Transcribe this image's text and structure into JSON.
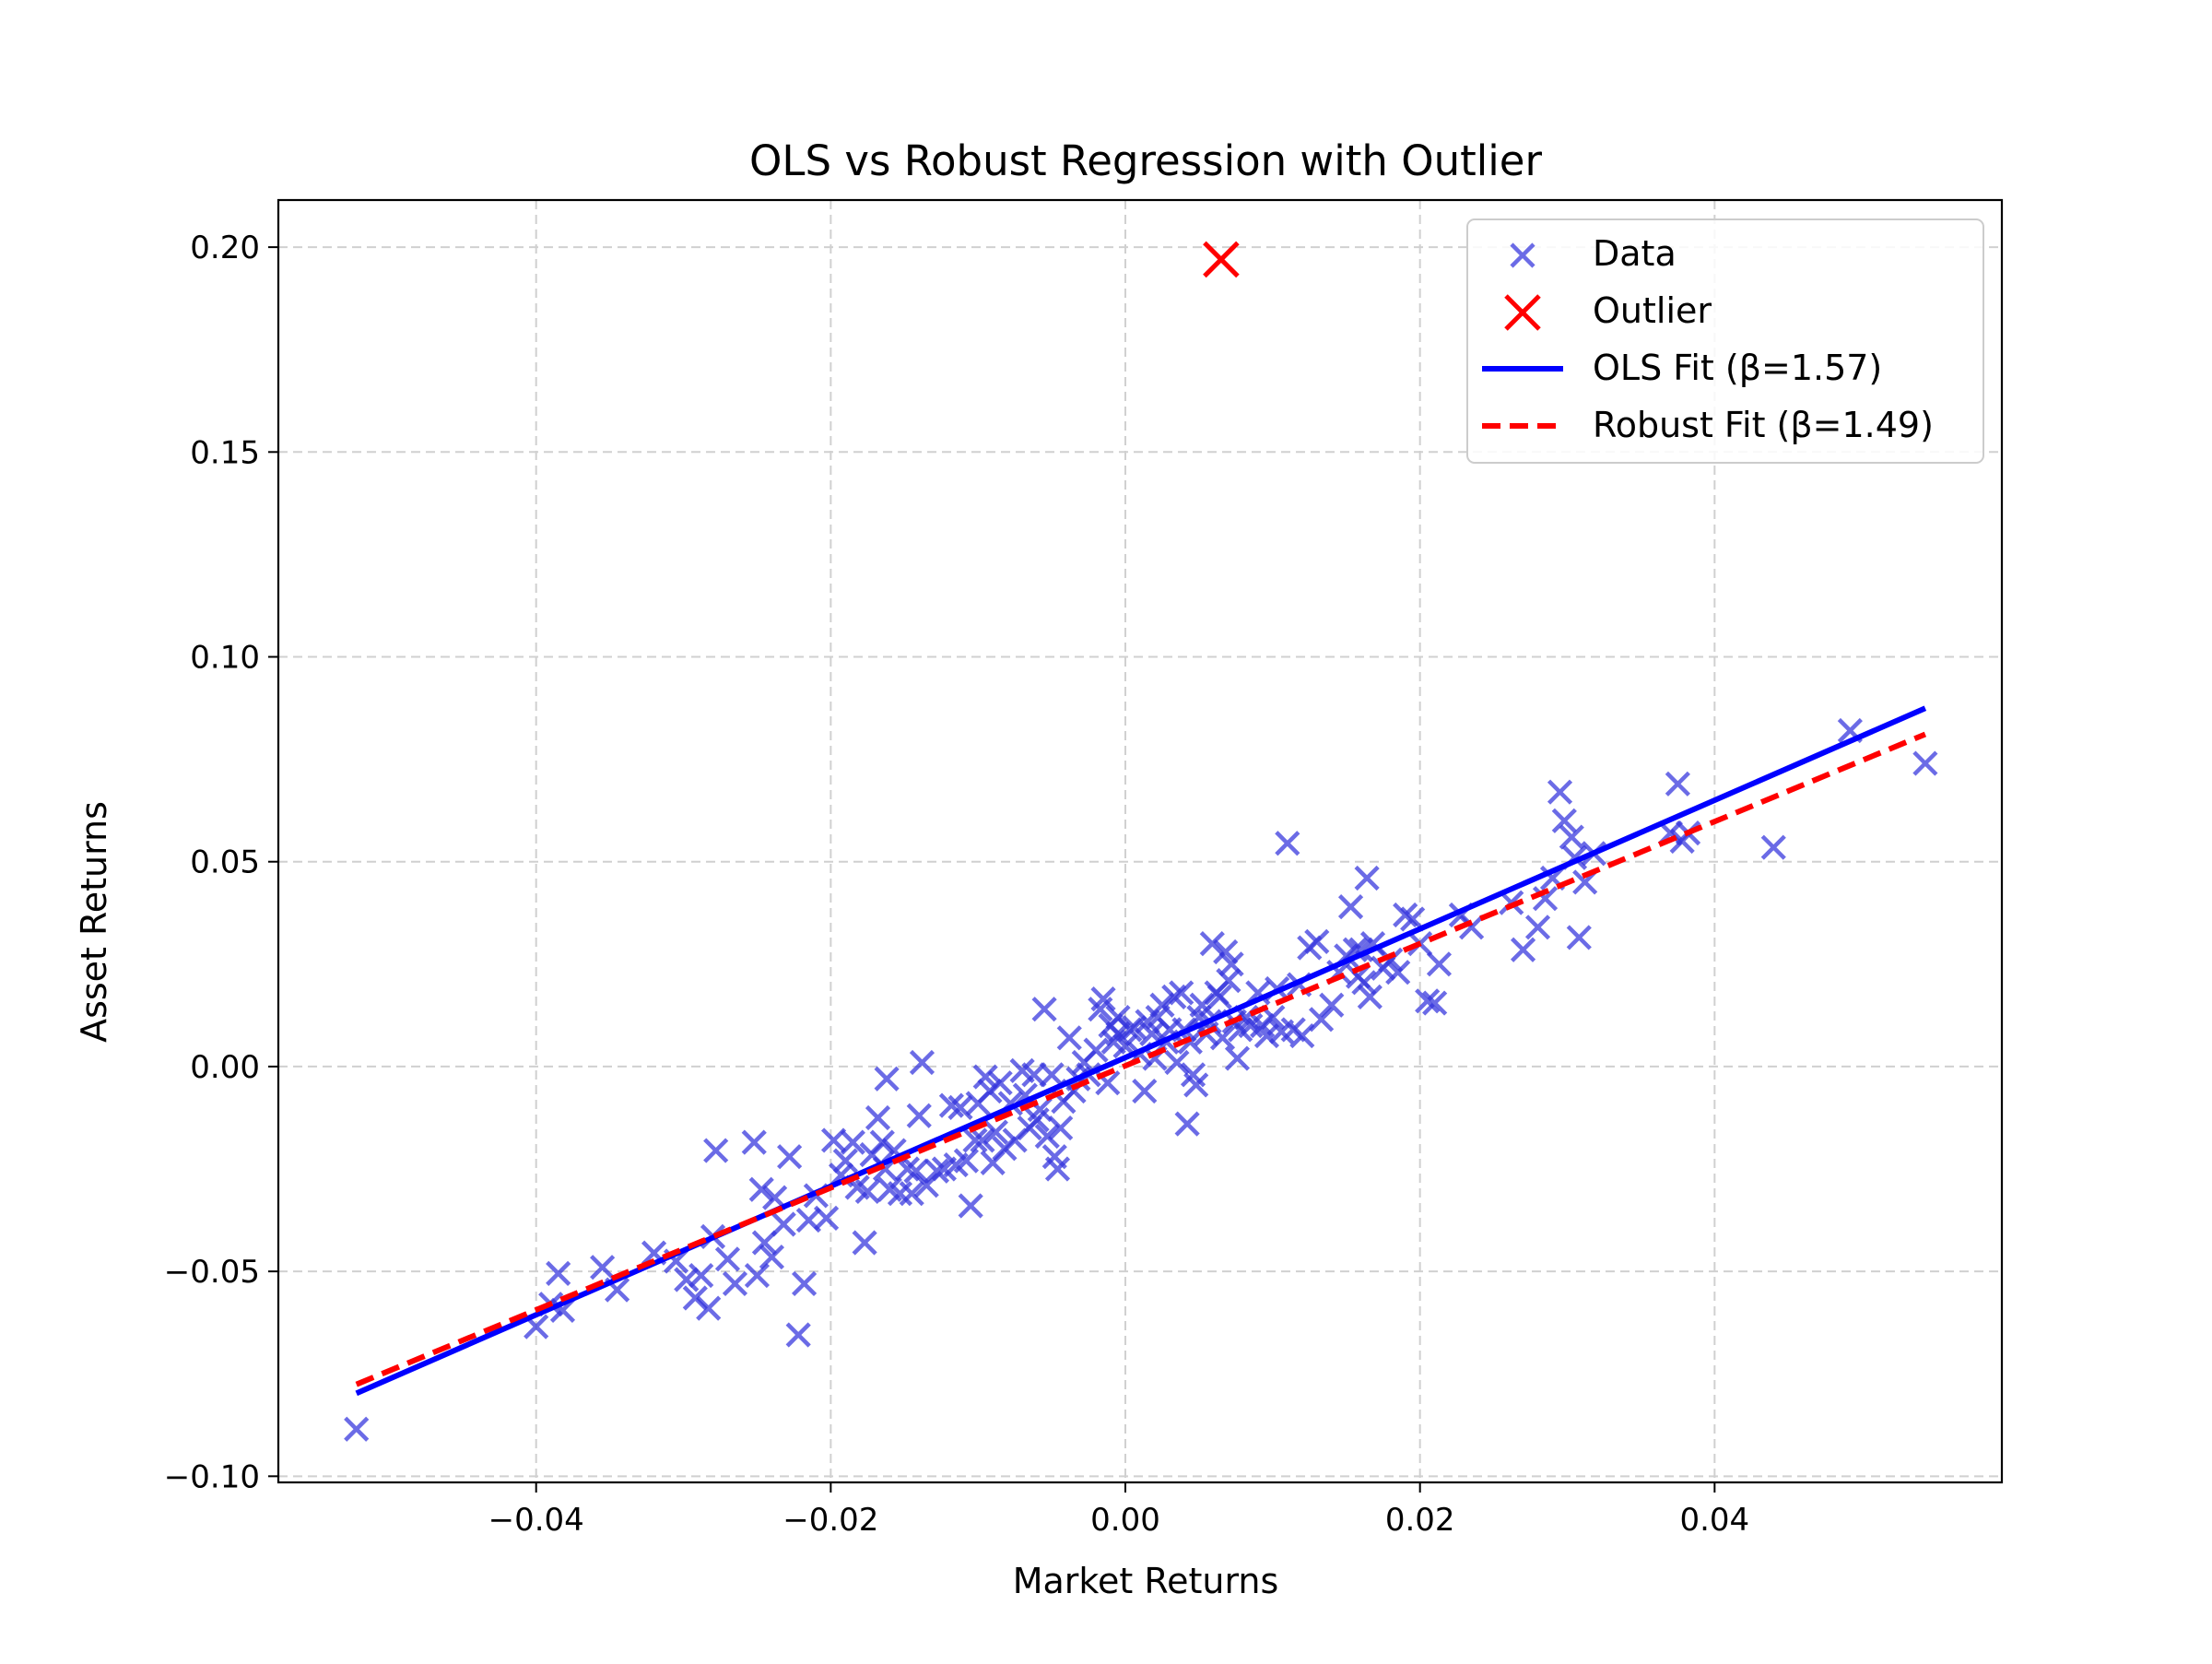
{
  "chart_data": {
    "type": "scatter",
    "title": "OLS vs Robust Regression with Outlier",
    "xlabel": "Market Returns",
    "ylabel": "Asset Returns",
    "xlim": [
      -0.0575,
      0.0595
    ],
    "ylim": [
      -0.1015,
      0.2115
    ],
    "x_ticks": [
      -0.04,
      -0.02,
      0.0,
      0.02,
      0.04
    ],
    "x_tick_labels": [
      "−0.04",
      "−0.02",
      "0.00",
      "0.02",
      "0.04"
    ],
    "y_ticks": [
      -0.1,
      -0.05,
      0.0,
      0.05,
      0.1,
      0.15,
      0.2
    ],
    "y_tick_labels": [
      "−0.10",
      "−0.05",
      "0.00",
      "0.05",
      "0.10",
      "0.15",
      "0.20"
    ],
    "grid": true,
    "legend_position": "top-right",
    "colors": {
      "data": "#3333dd",
      "outlier": "#ff0000",
      "ols": "#0000ff",
      "robust": "#ff0000"
    },
    "series": [
      {
        "name": "Data",
        "kind": "scatter",
        "marker": "x",
        "points": [
          [
            -0.0522,
            -0.0885
          ],
          [
            -0.04,
            -0.0635
          ],
          [
            -0.039,
            -0.058
          ],
          [
            -0.0385,
            -0.0505
          ],
          [
            -0.0382,
            -0.0595
          ],
          [
            -0.0355,
            -0.049
          ],
          [
            -0.0345,
            -0.0545
          ],
          [
            -0.032,
            -0.0455
          ],
          [
            -0.0305,
            -0.0475
          ],
          [
            -0.0298,
            -0.052
          ],
          [
            -0.0292,
            -0.0565
          ],
          [
            -0.0288,
            -0.051
          ],
          [
            -0.0283,
            -0.059
          ],
          [
            -0.028,
            -0.0415
          ],
          [
            -0.0278,
            -0.0205
          ],
          [
            -0.027,
            -0.047
          ],
          [
            -0.0265,
            -0.053
          ],
          [
            -0.0252,
            -0.0185
          ],
          [
            -0.025,
            -0.051
          ],
          [
            -0.0247,
            -0.03
          ],
          [
            -0.0245,
            -0.043
          ],
          [
            -0.024,
            -0.0465
          ],
          [
            -0.0238,
            -0.032
          ],
          [
            -0.0232,
            -0.0385
          ],
          [
            -0.0228,
            -0.022
          ],
          [
            -0.0222,
            -0.0655
          ],
          [
            -0.0218,
            -0.053
          ],
          [
            -0.0215,
            -0.0375
          ],
          [
            -0.021,
            -0.0315
          ],
          [
            -0.0203,
            -0.037
          ],
          [
            -0.0198,
            -0.018
          ],
          [
            -0.0193,
            -0.0265
          ],
          [
            -0.019,
            -0.023
          ],
          [
            -0.0185,
            -0.0185
          ],
          [
            -0.0182,
            -0.0295
          ],
          [
            -0.0177,
            -0.043
          ],
          [
            -0.0175,
            -0.0305
          ],
          [
            -0.0172,
            -0.0215
          ],
          [
            -0.0168,
            -0.0125
          ],
          [
            -0.0165,
            -0.0185
          ],
          [
            -0.0163,
            -0.025
          ],
          [
            -0.0162,
            -0.003
          ],
          [
            -0.016,
            -0.03
          ],
          [
            -0.0157,
            -0.0205
          ],
          [
            -0.0153,
            -0.031
          ],
          [
            -0.0148,
            -0.025
          ],
          [
            -0.0145,
            -0.031
          ],
          [
            -0.0142,
            -0.0255
          ],
          [
            -0.014,
            -0.012
          ],
          [
            -0.0138,
            0.001
          ],
          [
            -0.0128,
            -0.0255
          ],
          [
            -0.0123,
            -0.025
          ],
          [
            -0.0118,
            -0.0095
          ],
          [
            -0.0112,
            -0.01
          ],
          [
            -0.0108,
            -0.023
          ],
          [
            -0.0105,
            -0.034
          ],
          [
            -0.0102,
            -0.018
          ],
          [
            -0.01,
            -0.009
          ],
          [
            -0.0097,
            -0.018
          ],
          [
            -0.0095,
            -0.0025
          ],
          [
            -0.0092,
            -0.006
          ],
          [
            -0.009,
            -0.0235
          ],
          [
            -0.0088,
            -0.016
          ],
          [
            -0.0085,
            -0.004
          ],
          [
            -0.0082,
            -0.02
          ],
          [
            -0.0078,
            -0.009
          ],
          [
            -0.0075,
            -0.018
          ],
          [
            -0.007,
            -0.001
          ],
          [
            -0.0068,
            -0.007
          ],
          [
            -0.0065,
            -0.015
          ],
          [
            -0.0062,
            -0.002
          ],
          [
            -0.006,
            -0.013
          ],
          [
            -0.0058,
            -0.0105
          ],
          [
            -0.0055,
            0.014
          ],
          [
            -0.0053,
            -0.017
          ],
          [
            -0.005,
            -0.002
          ],
          [
            -0.0048,
            -0.022
          ],
          [
            -0.0046,
            -0.025
          ],
          [
            -0.0044,
            -0.015
          ],
          [
            -0.0042,
            -0.0085
          ],
          [
            -0.0038,
            0.007
          ],
          [
            -0.0035,
            -0.006
          ],
          [
            -0.0032,
            -0.003
          ],
          [
            -0.0028,
            0.001
          ],
          [
            -0.0025,
            -0.002
          ],
          [
            -0.002,
            0.004
          ],
          [
            -0.0017,
            0.014
          ],
          [
            -0.0015,
            0.0165
          ],
          [
            -0.0012,
            -0.004
          ],
          [
            -0.001,
            0.01
          ],
          [
            -0.0008,
            0.006
          ],
          [
            -0.0005,
            0.012
          ],
          [
            0.0,
            0.005
          ],
          [
            0.0003,
            0.009
          ],
          [
            0.0006,
            0.0095
          ],
          [
            0.001,
            0.003
          ],
          [
            0.0013,
            -0.006
          ],
          [
            0.0015,
            0.011
          ],
          [
            0.0018,
            0.008
          ],
          [
            0.002,
            0.002
          ],
          [
            0.0025,
            0.015
          ],
          [
            0.0028,
            0.006
          ],
          [
            0.003,
            0.009
          ],
          [
            0.0033,
            0.017
          ],
          [
            0.0035,
            0.001
          ],
          [
            0.0038,
            0.018
          ],
          [
            0.004,
            0.009
          ],
          [
            0.0042,
            -0.014
          ],
          [
            0.0044,
            0.006
          ],
          [
            0.0046,
            -0.002
          ],
          [
            0.0048,
            -0.0045
          ],
          [
            0.005,
            0.012
          ],
          [
            0.0052,
            0.015
          ],
          [
            0.0055,
            0.008
          ],
          [
            0.0057,
            0.011
          ],
          [
            0.0059,
            0.03
          ],
          [
            0.0062,
            0.018
          ],
          [
            0.0064,
            0.017
          ],
          [
            0.0066,
            0.007
          ],
          [
            0.0068,
            0.028
          ],
          [
            0.007,
            0.021
          ],
          [
            0.0072,
            0.025
          ],
          [
            0.0074,
            0.011
          ],
          [
            0.0076,
            0.002
          ],
          [
            0.0078,
            0.009
          ],
          [
            0.0082,
            0.012
          ],
          [
            0.0085,
            0.01
          ],
          [
            0.009,
            0.018
          ],
          [
            0.0093,
            0.01
          ],
          [
            0.0096,
            0.0075
          ],
          [
            0.01,
            0.012
          ],
          [
            0.0103,
            0.019
          ],
          [
            0.0106,
            0.0085
          ],
          [
            0.011,
            0.0545
          ],
          [
            0.0114,
            0.009
          ],
          [
            0.012,
            0.0075
          ],
          [
            0.0125,
            0.029
          ],
          [
            0.013,
            0.0305
          ],
          [
            0.0133,
            0.0115
          ],
          [
            0.014,
            0.015
          ],
          [
            0.0145,
            0.023
          ],
          [
            0.015,
            0.027
          ],
          [
            0.0153,
            0.039
          ],
          [
            0.0156,
            0.0285
          ],
          [
            0.0158,
            0.022
          ],
          [
            0.016,
            0.0285
          ],
          [
            0.0162,
            0.0205
          ],
          [
            0.0164,
            0.046
          ],
          [
            0.0166,
            0.017
          ],
          [
            0.0168,
            0.03
          ],
          [
            0.0175,
            0.024
          ],
          [
            0.018,
            0.026
          ],
          [
            0.0185,
            0.023
          ],
          [
            0.019,
            0.037
          ],
          [
            0.0195,
            0.036
          ],
          [
            0.02,
            0.03
          ],
          [
            0.0205,
            0.016
          ],
          [
            0.021,
            0.0155
          ],
          [
            0.0213,
            0.025
          ],
          [
            0.0228,
            0.037
          ],
          [
            0.0235,
            0.034
          ],
          [
            0.0262,
            0.04
          ],
          [
            0.027,
            0.0285
          ],
          [
            0.028,
            0.034
          ],
          [
            0.0285,
            0.041
          ],
          [
            0.029,
            0.046
          ],
          [
            0.0295,
            0.067
          ],
          [
            0.0298,
            0.06
          ],
          [
            0.0303,
            0.056
          ],
          [
            0.0305,
            0.051
          ],
          [
            0.0308,
            0.0315
          ],
          [
            0.0312,
            0.045
          ],
          [
            0.0318,
            0.052
          ],
          [
            0.037,
            0.057
          ],
          [
            0.0375,
            0.069
          ],
          [
            0.0378,
            0.055
          ],
          [
            0.0382,
            0.057
          ],
          [
            0.044,
            0.0535
          ],
          [
            0.0492,
            0.082
          ],
          [
            0.0543,
            0.074
          ],
          [
            -0.0115,
            -0.024
          ],
          [
            -0.0135,
            -0.029
          ],
          [
            0.0022,
            0.012
          ],
          [
            -0.0005,
            0.008
          ],
          [
            0.0118,
            0.02
          ]
        ]
      },
      {
        "name": "Outlier",
        "kind": "scatter",
        "marker": "x",
        "points": [
          [
            0.0065,
            0.197
          ]
        ]
      },
      {
        "name": "OLS Fit (β=1.57)",
        "kind": "line",
        "style": "solid",
        "slope": 1.57,
        "intercept": 0.0022,
        "x_range": [
          -0.0522,
          0.0543
        ]
      },
      {
        "name": "Robust Fit (β=1.49)",
        "kind": "line",
        "style": "dashed",
        "slope": 1.49,
        "intercept": 0.0002,
        "x_range": [
          -0.0522,
          0.0543
        ]
      }
    ]
  }
}
